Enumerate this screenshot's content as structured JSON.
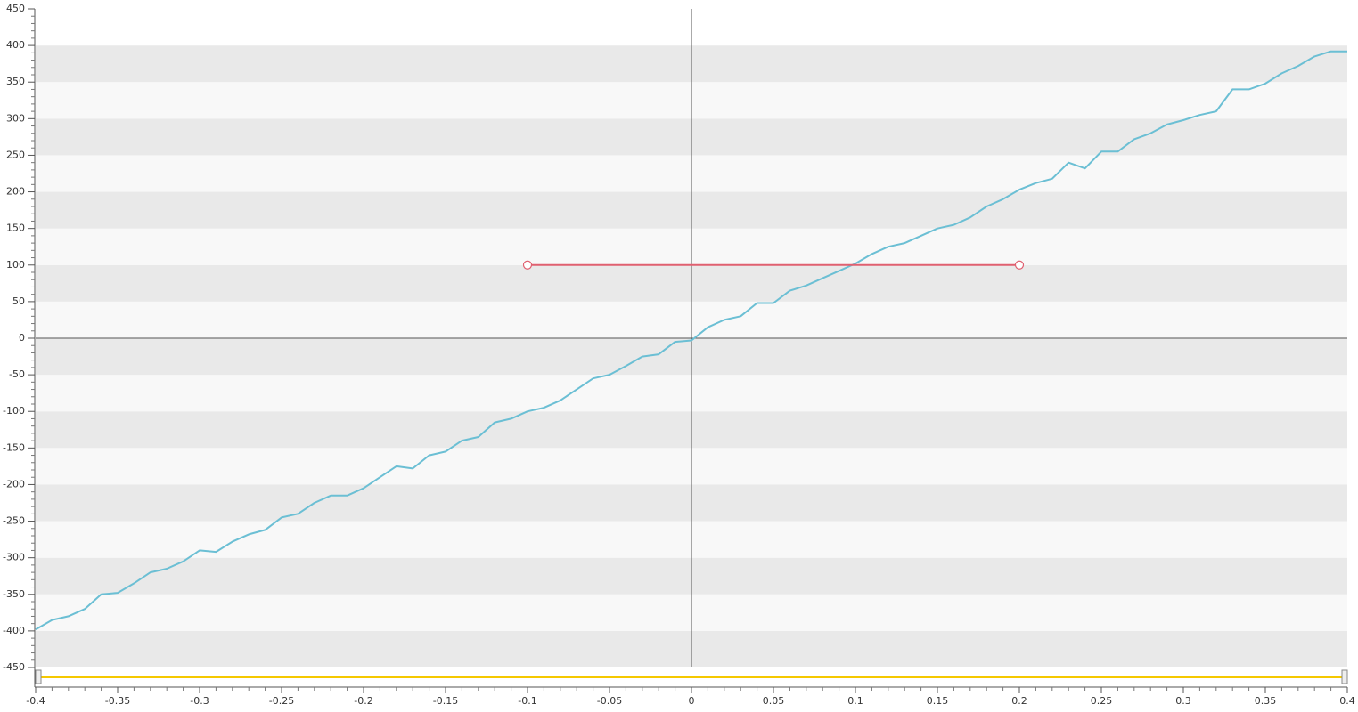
{
  "chart_data": {
    "type": "line",
    "x": [
      -0.4,
      -0.39,
      -0.38,
      -0.37,
      -0.36,
      -0.35,
      -0.34,
      -0.33,
      -0.32,
      -0.31,
      -0.3,
      -0.29,
      -0.28,
      -0.27,
      -0.26,
      -0.25,
      -0.24,
      -0.23,
      -0.22,
      -0.21,
      -0.2,
      -0.19,
      -0.18,
      -0.17,
      -0.16,
      -0.15,
      -0.14,
      -0.13,
      -0.12,
      -0.11,
      -0.1,
      -0.09,
      -0.08,
      -0.07,
      -0.06,
      -0.05,
      -0.04,
      -0.03,
      -0.02,
      -0.01,
      0,
      0.01,
      0.02,
      0.03,
      0.04,
      0.05,
      0.06,
      0.07,
      0.08,
      0.09,
      0.1,
      0.11,
      0.12,
      0.13,
      0.14,
      0.15,
      0.16,
      0.17,
      0.18,
      0.19,
      0.2,
      0.21,
      0.22,
      0.23,
      0.24,
      0.25,
      0.26,
      0.27,
      0.28,
      0.29,
      0.3,
      0.31,
      0.32,
      0.33,
      0.34,
      0.35,
      0.36,
      0.37,
      0.38,
      0.39,
      0.4
    ],
    "series": [
      {
        "color": "#6bbfd4",
        "values": [
          -398,
          -385,
          -380,
          -370,
          -350,
          -348,
          -335,
          -320,
          -315,
          -305,
          -290,
          -292,
          -278,
          -268,
          -262,
          -245,
          -240,
          -225,
          -215,
          -215,
          -205,
          -190,
          -175,
          -178,
          -160,
          -155,
          -140,
          -135,
          -115,
          -110,
          -100,
          -95,
          -85,
          -70,
          -55,
          -50,
          -38,
          -25,
          -22,
          -5,
          -3,
          15,
          25,
          30,
          48,
          48,
          65,
          72,
          82,
          92,
          102,
          115,
          125,
          130,
          140,
          150,
          155,
          165,
          180,
          190,
          203,
          212,
          218,
          240,
          232,
          255,
          255,
          272,
          280,
          292,
          298,
          305,
          310,
          340,
          340,
          348,
          362,
          372,
          385,
          392,
          392
        ]
      }
    ],
    "segment": {
      "x": [
        -0.1,
        0.2
      ],
      "y": [
        100,
        100
      ],
      "color": "#e06070"
    },
    "xlim": [
      -0.4,
      0.4
    ],
    "xticks": [
      -0.4,
      -0.35,
      -0.3,
      -0.25,
      -0.2,
      -0.15,
      -0.1,
      -0.05,
      0,
      0.05,
      0.1,
      0.15,
      0.2,
      0.25,
      0.3,
      0.35,
      0.4
    ],
    "ylim": [
      -450,
      450
    ],
    "yticks": [
      -450,
      -400,
      -350,
      -300,
      -250,
      -200,
      -150,
      -100,
      -50,
      0,
      50,
      100,
      150,
      200,
      250,
      300,
      350,
      400,
      450
    ],
    "bands": true
  }
}
